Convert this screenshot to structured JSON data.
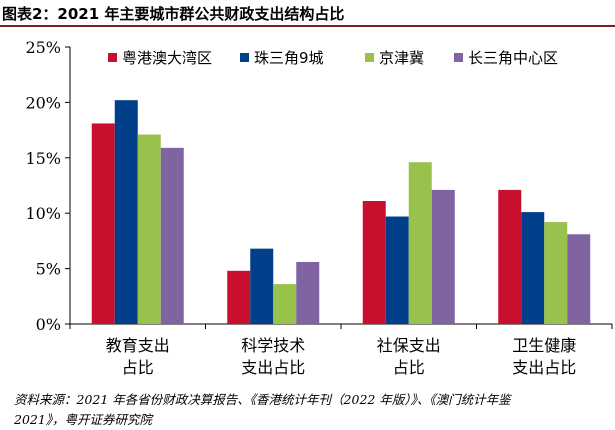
{
  "title": "图表2：2021 年主要城市群公共财政支出结构占比",
  "source_line1": "资料来源：2021 年各省份财政决算报告、《香港统计年刊（2022 年版）》、《澳门统计年鉴",
  "source_line2": "2021》，粤开证券研究院",
  "chart_data": {
    "type": "bar",
    "categories": [
      [
        "教育支出",
        "占比"
      ],
      [
        "科学技术",
        "支出占比"
      ],
      [
        "社保支出",
        "占比"
      ],
      [
        "卫生健康",
        "支出占比"
      ]
    ],
    "series": [
      {
        "name": "粤港澳大湾区",
        "color": "#c8102e",
        "values": [
          18.1,
          4.8,
          11.1,
          12.1
        ]
      },
      {
        "name": "珠三角9城",
        "color": "#003f8a",
        "values": [
          20.2,
          6.8,
          9.7,
          10.1
        ]
      },
      {
        "name": "京津冀",
        "color": "#99c24d",
        "values": [
          17.1,
          3.6,
          14.6,
          9.2
        ]
      },
      {
        "name": "长三角中心区",
        "color": "#8064a2",
        "values": [
          15.9,
          5.6,
          12.1,
          8.1
        ]
      }
    ],
    "ylim": [
      0,
      25
    ],
    "yticks": [
      0,
      5,
      10,
      15,
      20,
      25
    ],
    "ytick_labels": [
      "0%",
      "5%",
      "10%",
      "15%",
      "20%",
      "25%"
    ],
    "legend_position": "top",
    "grid": false
  }
}
